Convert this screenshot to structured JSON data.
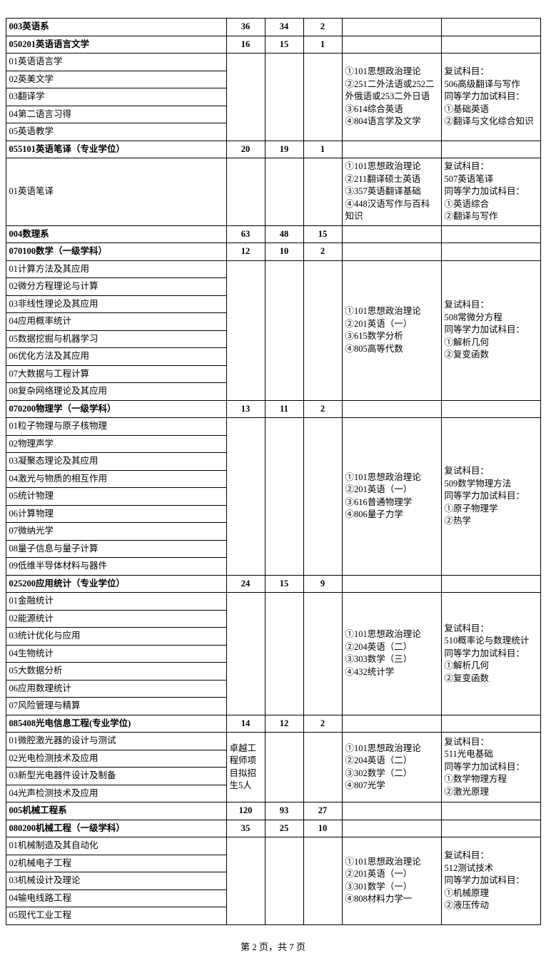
{
  "sections": [
    {
      "header": {
        "name": "003英语系",
        "n1": "36",
        "n2": "34",
        "n3": "2",
        "c5": "",
        "c6": ""
      },
      "groups": [
        {
          "header": {
            "name": "050201英语语言文学",
            "n1": "16",
            "n2": "15",
            "n3": "1"
          },
          "rows": [
            "01英语语言学",
            "02英美文学",
            "03翻译学",
            "04第二语言习得",
            "05英语教学"
          ],
          "note_c2": "",
          "exam": "①101思想政治理论\n②251二外法语或252二外俄语或253二外日语\n③614综合英语\n④804语言学及文学",
          "retest": "复试科目：\n506高级翻译与写作\n同等学力加试科目：\n①基础英语\n②翻译与文化综合知识"
        },
        {
          "header": {
            "name": "055101英语笔译（专业学位）",
            "n1": "20",
            "n2": "19",
            "n3": "1"
          },
          "rows": [
            "01英语笔译"
          ],
          "note_c2": "",
          "exam": "①101思想政治理论\n②211翻译硕士英语\n③357英语翻译基础\n④448汉语写作与百科知识",
          "retest": "复试科目：\n507英语笔译\n同等学力加试科目：\n①英语综合\n②翻译与写作"
        }
      ]
    },
    {
      "header": {
        "name": "004数理系",
        "n1": "63",
        "n2": "48",
        "n3": "15",
        "c5": "",
        "c6": ""
      },
      "groups": [
        {
          "header": {
            "name": "070100数学（一级学科）",
            "n1": "12",
            "n2": "10",
            "n3": "2"
          },
          "rows": [
            "01计算方法及其应用",
            "02微分方程理论与计算",
            "03非线性理论及其应用",
            "04应用概率统计",
            "05数据挖掘与机器学习",
            "06优化方法及其应用",
            "07大数据与工程计算",
            "08复杂网络理论及其应用"
          ],
          "note_c2": "",
          "exam": "①101思想政治理论\n②201英语（一）\n③615数学分析\n④805高等代数",
          "retest": "复试科目：\n508常微分方程\n同等学力加试科目：\n①解析几何\n②复变函数"
        },
        {
          "header": {
            "name": "070200物理学（一级学科）",
            "n1": "13",
            "n2": "11",
            "n3": "2"
          },
          "rows": [
            "01粒子物理与原子核物理",
            "02物理声学",
            "03凝聚态理论及其应用",
            "04激光与物质的相互作用",
            "05统计物理",
            "06计算物理",
            "07微纳光学",
            "08量子信息与量子计算",
            "09低维半导体材料与器件"
          ],
          "note_c2": "",
          "exam": "①101思想政治理论\n②201英语（一）\n③616普通物理学\n④806量子力学",
          "retest": "复试科目：\n509数学物理方法\n同等学力加试科目：\n①原子物理学\n②热学"
        },
        {
          "header": {
            "name": "025200应用统计（专业学位）",
            "n1": "24",
            "n2": "15",
            "n3": "9"
          },
          "rows": [
            "01金融统计",
            "02能源统计",
            "03统计优化与应用",
            "04生物统计",
            "05大数据分析",
            "06应用数理统计",
            "07风险管理与精算"
          ],
          "note_c2": "",
          "exam": "①101思想政治理论\n②204英语（二）\n③303数学（三）\n④432统计学",
          "retest": "复试科目：\n510概率论与数理统计\n同等学力加试科目：\n①解析几何\n②复变函数"
        },
        {
          "header": {
            "name": "085408光电信息工程(专业学位)",
            "n1": "14",
            "n2": "12",
            "n3": "2"
          },
          "rows": [
            "01微腔激光器的设计与测试",
            "02光电检测技术及应用",
            "03新型光电器件设计及制备",
            "04光声检测技术及应用"
          ],
          "note_c2": "卓越工程师项目拟招生5人",
          "exam": "①101思想政治理论\n②204英语（二）\n③302数学（二）\n④807光学",
          "retest": "复试科目：\n511光电基础\n同等学力加试科目：\n①数学物理方程\n②激光原理"
        }
      ]
    },
    {
      "header": {
        "name": "005机械工程系",
        "n1": "120",
        "n2": "93",
        "n3": "27",
        "c5": "",
        "c6": ""
      },
      "groups": [
        {
          "header": {
            "name": "080200机械工程（一级学科）",
            "n1": "35",
            "n2": "25",
            "n3": "10"
          },
          "rows": [
            "01机械制造及其自动化",
            "02机械电子工程",
            "03机械设计及理论",
            "04输电线路工程",
            "05现代工业工程"
          ],
          "note_c2": "",
          "exam": "①101思想政治理论\n②201英语（一）\n③301数学（一）\n④808材料力学一",
          "retest": "复试科目：\n512测试技术\n同等学力加试科目：\n①机械原理\n②液压传动"
        }
      ]
    }
  ],
  "footer": "第 2 页，共 7 页"
}
